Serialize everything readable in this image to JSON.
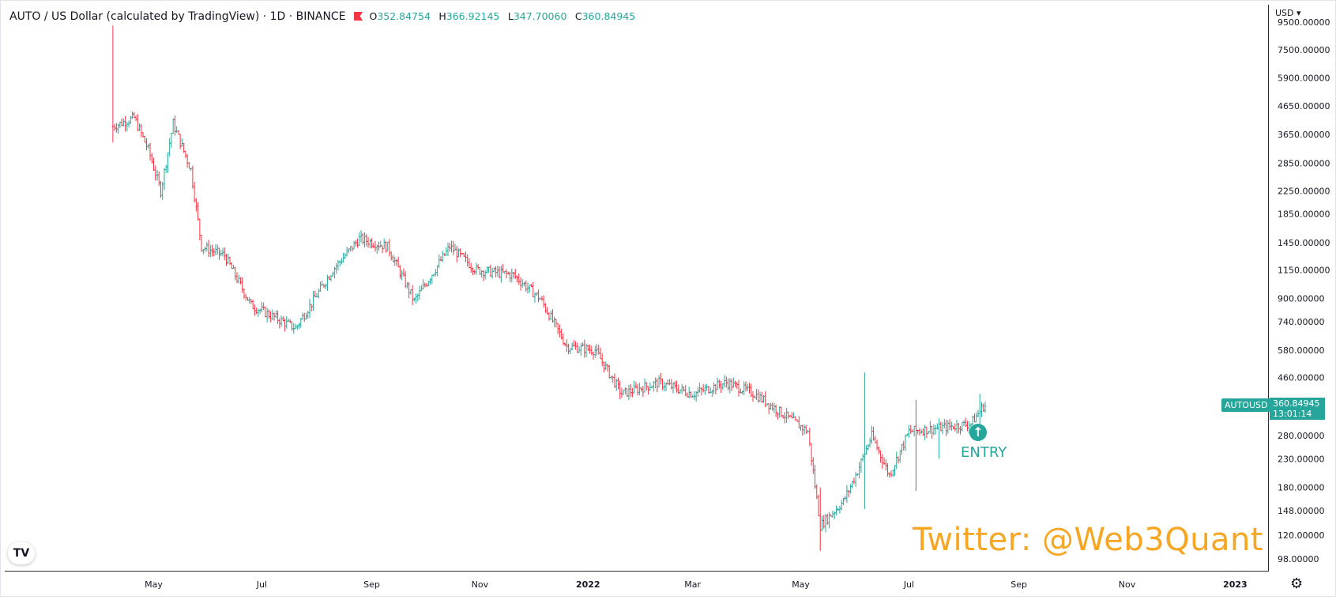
{
  "legend": {
    "symbol": "AUTO / US Dollar (calculated by TradingView) · 1D · BINANCE",
    "o_label": "O",
    "o_value": "352.84754",
    "h_label": "H",
    "h_value": "366.92145",
    "l_label": "L",
    "l_value": "347.70060",
    "c_label": "C",
    "c_value": "360.84945"
  },
  "currency": "USD",
  "watermark": "Twitter: @Web3Quant",
  "entry_label": "ENTRY",
  "entry_icon": "arrow-up-circle-icon",
  "tv_logo_text": "TV",
  "ticker_tag": "AUTOUSD",
  "last_price": "360.84945",
  "countdown": "13:01:14",
  "colors": {
    "up": "#26a69a",
    "down": "#f23645",
    "watermark": "#f5a623"
  },
  "chart_data": {
    "type": "ohlc",
    "scale": "log",
    "y_ticks": [
      "9500.00000",
      "7500.00000",
      "5900.00000",
      "4650.00000",
      "3650.00000",
      "2850.00000",
      "2250.00000",
      "1850.00000",
      "1450.00000",
      "1150.00000",
      "900.00000",
      "740.00000",
      "580.00000",
      "460.00000",
      "280.00000",
      "230.00000",
      "180.00000",
      "148.00000",
      "120.00000",
      "98.00000"
    ],
    "x_ticks": [
      "May",
      "Jul",
      "Sep",
      "Nov",
      "2022",
      "Mar",
      "May",
      "Jul",
      "Sep",
      "Nov",
      "2023"
    ],
    "x_tick_bold": [
      "2022",
      "2023"
    ],
    "ylim": [
      88,
      11000
    ],
    "anchors": [
      {
        "date": "2021-04-08",
        "price": 3900
      },
      {
        "date": "2021-04-20",
        "price": 4200
      },
      {
        "date": "2021-04-28",
        "price": 3200
      },
      {
        "date": "2021-05-05",
        "price": 2250
      },
      {
        "date": "2021-05-12",
        "price": 4000
      },
      {
        "date": "2021-05-22",
        "price": 2700
      },
      {
        "date": "2021-05-28",
        "price": 1400
      },
      {
        "date": "2021-06-10",
        "price": 1300
      },
      {
        "date": "2021-06-25",
        "price": 850
      },
      {
        "date": "2021-07-20",
        "price": 700
      },
      {
        "date": "2021-08-10",
        "price": 1150
      },
      {
        "date": "2021-08-25",
        "price": 1500
      },
      {
        "date": "2021-09-10",
        "price": 1400
      },
      {
        "date": "2021-09-25",
        "price": 880
      },
      {
        "date": "2021-10-15",
        "price": 1400
      },
      {
        "date": "2021-10-30",
        "price": 1150
      },
      {
        "date": "2021-11-20",
        "price": 1100
      },
      {
        "date": "2021-12-05",
        "price": 900
      },
      {
        "date": "2021-12-20",
        "price": 600
      },
      {
        "date": "2022-01-05",
        "price": 580
      },
      {
        "date": "2022-01-20",
        "price": 400
      },
      {
        "date": "2022-02-10",
        "price": 440
      },
      {
        "date": "2022-03-01",
        "price": 400
      },
      {
        "date": "2022-03-20",
        "price": 440
      },
      {
        "date": "2022-04-05",
        "price": 400
      },
      {
        "date": "2022-04-20",
        "price": 340
      },
      {
        "date": "2022-05-05",
        "price": 290
      },
      {
        "date": "2022-05-12",
        "price": 130
      },
      {
        "date": "2022-05-25",
        "price": 160
      },
      {
        "date": "2022-06-01",
        "price": 200
      },
      {
        "date": "2022-06-10",
        "price": 280
      },
      {
        "date": "2022-06-20",
        "price": 200
      },
      {
        "date": "2022-07-01",
        "price": 290
      },
      {
        "date": "2022-07-20",
        "price": 300
      },
      {
        "date": "2022-08-05",
        "price": 310
      },
      {
        "date": "2022-08-12",
        "price": 360
      }
    ],
    "spikes": [
      {
        "date": "2021-04-08",
        "high": 9200,
        "low": 3400
      },
      {
        "date": "2022-05-12",
        "high": 180,
        "low": 105
      },
      {
        "date": "2022-06-06",
        "high": 480,
        "low": 150
      },
      {
        "date": "2022-07-05",
        "high": 380,
        "low": 175
      },
      {
        "date": "2022-07-18",
        "high": 320,
        "low": 230
      },
      {
        "date": "2022-08-10",
        "high": 400,
        "low": 310
      }
    ],
    "x_range": [
      "2021-02-06",
      "2023-01-20"
    ],
    "last_date": "2022-08-13"
  }
}
